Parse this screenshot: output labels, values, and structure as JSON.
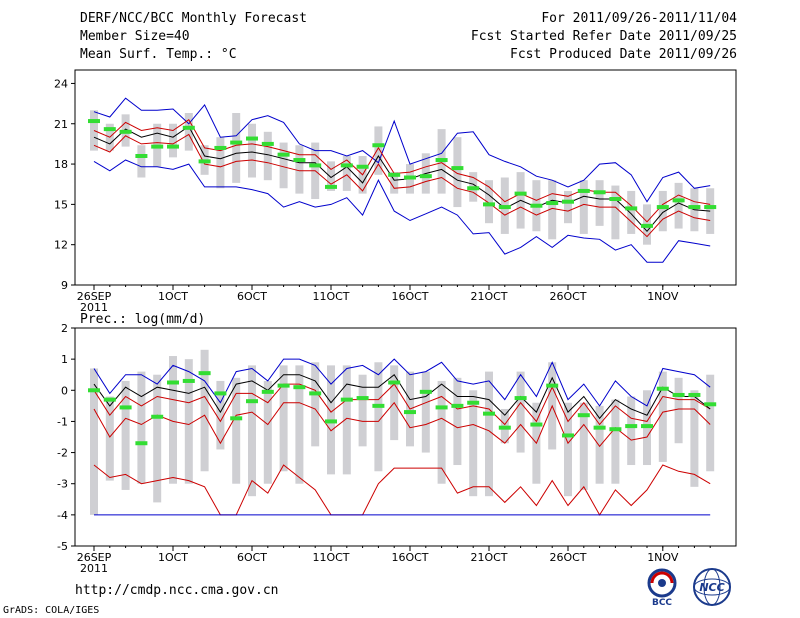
{
  "header": {
    "title": "DERF/NCC/BCC Monthly Forecast",
    "member_size": "Member Size=40",
    "variable_label": "Mean Surf. Temp.: °C",
    "period": "For 2011/09/26-2011/11/04",
    "started": "Fcst Started Refer Date 2011/09/25",
    "produced": "Fcst Produced Date 2011/09/26"
  },
  "footer": {
    "url": "http://cmdp.ncc.cma.gov.cn",
    "credit": "GrADS: COLA/IGES",
    "logo_left_text": "BCC",
    "logo_right_text": "NCC"
  },
  "colors": {
    "frame": "#000000",
    "outer_bound": "#0000cc",
    "inner_bound": "#cc0000",
    "mean": "#000000",
    "bar": "#cfcfd3",
    "marker": "#33dd33"
  },
  "chart_data": [
    {
      "type": "line",
      "title": "Mean Surf. Temp.: °C",
      "x_day_start": 0,
      "x_day_end": 39,
      "x_ticks": [
        {
          "day": 0,
          "label": "26SEP",
          "sub": "2011"
        },
        {
          "day": 5,
          "label": "1OCT"
        },
        {
          "day": 10,
          "label": "6OCT"
        },
        {
          "day": 15,
          "label": "11OCT"
        },
        {
          "day": 20,
          "label": "16OCT"
        },
        {
          "day": 25,
          "label": "21OCT"
        },
        {
          "day": 30,
          "label": "26OCT"
        },
        {
          "day": 36,
          "label": "1NOV"
        }
      ],
      "ylim": [
        9,
        25
      ],
      "yticks": [
        9,
        12,
        15,
        18,
        21,
        24
      ],
      "series": [
        {
          "name": "max",
          "values": [
            21.9,
            21.5,
            22.9,
            22.0,
            22.0,
            22.1,
            21.0,
            22.4,
            20.0,
            20.1,
            21.3,
            21.6,
            21.1,
            19.5,
            19.0,
            19.0,
            18.6,
            19.0,
            18.1,
            21.2,
            18.0,
            18.4,
            18.8,
            20.3,
            20.4,
            18.7,
            18.2,
            17.8,
            17.1,
            16.8,
            16.3,
            16.8,
            18.0,
            18.1,
            17.2,
            15.2,
            17.0,
            17.4,
            16.2,
            16.4
          ]
        },
        {
          "name": "upper",
          "values": [
            20.5,
            20.0,
            21.1,
            20.5,
            20.7,
            20.5,
            21.3,
            19.2,
            19.0,
            19.4,
            19.5,
            19.3,
            19.0,
            18.7,
            18.7,
            17.6,
            18.3,
            17.2,
            19.2,
            17.3,
            17.4,
            17.8,
            18.1,
            17.3,
            17.0,
            16.3,
            15.2,
            15.8,
            15.3,
            15.8,
            15.6,
            16.1,
            15.9,
            15.9,
            14.9,
            13.7,
            15.0,
            15.7,
            15.2,
            15.0
          ]
        },
        {
          "name": "mean",
          "values": [
            20.0,
            19.5,
            20.6,
            20.0,
            20.3,
            20.0,
            20.8,
            18.6,
            18.4,
            18.8,
            18.9,
            18.7,
            18.4,
            18.1,
            18.1,
            17.0,
            17.8,
            16.6,
            18.6,
            16.8,
            16.9,
            17.3,
            17.6,
            16.8,
            16.5,
            15.7,
            14.7,
            15.3,
            14.8,
            15.3,
            15.1,
            15.6,
            15.4,
            15.4,
            14.3,
            13.0,
            14.4,
            15.1,
            14.6,
            14.5
          ]
        },
        {
          "name": "lower",
          "values": [
            19.4,
            18.9,
            20.1,
            19.5,
            19.6,
            19.5,
            20.2,
            18.0,
            17.8,
            18.2,
            18.3,
            18.1,
            17.8,
            17.5,
            17.5,
            16.5,
            17.2,
            16.0,
            18.0,
            16.2,
            16.3,
            16.7,
            17.0,
            16.2,
            15.9,
            15.1,
            14.2,
            14.8,
            14.2,
            14.7,
            14.5,
            15.0,
            14.8,
            14.8,
            13.7,
            12.6,
            13.9,
            14.5,
            14.0,
            13.8
          ]
        },
        {
          "name": "min",
          "values": [
            18.2,
            17.5,
            18.3,
            17.8,
            17.8,
            17.6,
            18.0,
            16.3,
            16.3,
            16.3,
            16.1,
            15.8,
            14.8,
            15.2,
            14.8,
            15.0,
            15.5,
            14.2,
            16.8,
            14.5,
            13.8,
            14.3,
            14.8,
            14.2,
            12.8,
            12.9,
            11.3,
            11.8,
            12.6,
            11.8,
            12.7,
            12.5,
            12.4,
            11.6,
            12.0,
            10.7,
            10.7,
            12.3,
            12.1,
            11.9
          ]
        },
        {
          "name": "obs_marker",
          "values": [
            21.2,
            20.6,
            20.4,
            18.6,
            19.3,
            19.3,
            20.7,
            18.2,
            19.2,
            19.6,
            19.9,
            19.5,
            18.7,
            18.3,
            17.9,
            16.3,
            17.9,
            17.8,
            19.4,
            17.2,
            17.0,
            17.1,
            18.3,
            17.7,
            16.2,
            15.0,
            14.8,
            15.8,
            14.9,
            15.1,
            15.2,
            16.0,
            15.9,
            15.4,
            14.7,
            13.4,
            14.8,
            15.3,
            14.8,
            14.8
          ]
        }
      ],
      "bars": {
        "name": "box_range",
        "low": [
          19.0,
          19.0,
          19.3,
          17.0,
          17.8,
          18.5,
          19.0,
          17.2,
          16.2,
          16.6,
          17.0,
          16.8,
          16.2,
          15.8,
          15.4,
          16.0,
          16.0,
          15.8,
          17.2,
          15.8,
          15.8,
          15.8,
          15.8,
          14.8,
          15.2,
          13.6,
          12.8,
          13.2,
          13.0,
          12.4,
          13.6,
          12.8,
          13.4,
          12.4,
          12.8,
          12.0,
          13.0,
          13.2,
          13.0,
          12.8
        ],
        "high": [
          22.0,
          21.0,
          21.7,
          19.4,
          21.0,
          21.0,
          21.8,
          19.4,
          20.0,
          21.8,
          21.0,
          20.4,
          19.6,
          19.4,
          19.6,
          18.2,
          18.6,
          18.6,
          20.8,
          17.4,
          18.0,
          18.8,
          20.6,
          20.0,
          17.4,
          16.8,
          17.0,
          17.4,
          16.8,
          16.8,
          16.0,
          16.8,
          16.8,
          16.4,
          16.0,
          15.0,
          16.0,
          16.6,
          16.2,
          16.2
        ]
      }
    },
    {
      "type": "line",
      "title": "Prec.: log(mm/d)",
      "x_day_start": 0,
      "x_day_end": 39,
      "x_ticks": [
        {
          "day": 0,
          "label": "26SEP",
          "sub": "2011"
        },
        {
          "day": 5,
          "label": "1OCT"
        },
        {
          "day": 10,
          "label": "6OCT"
        },
        {
          "day": 15,
          "label": "11OCT"
        },
        {
          "day": 20,
          "label": "16OCT"
        },
        {
          "day": 25,
          "label": "21OCT"
        },
        {
          "day": 30,
          "label": "26OCT"
        },
        {
          "day": 36,
          "label": "1NOV"
        }
      ],
      "ylim": [
        -5,
        2
      ],
      "yticks": [
        -5,
        -4,
        -3,
        -2,
        -1,
        0,
        1,
        2
      ],
      "series": [
        {
          "name": "max",
          "values": [
            0.7,
            -0.1,
            0.5,
            0.5,
            0.2,
            0.8,
            0.6,
            0.3,
            -0.4,
            0.6,
            0.7,
            0.3,
            1.0,
            1.0,
            0.8,
            0.2,
            0.7,
            0.8,
            0.5,
            1.0,
            0.5,
            0.6,
            0.9,
            0.3,
            0.2,
            0.3,
            -0.3,
            0.5,
            -0.2,
            0.9,
            -0.3,
            0.2,
            -0.5,
            0.3,
            -0.2,
            -0.5,
            0.7,
            0.6,
            0.5,
            0.1
          ]
        },
        {
          "name": "upper",
          "values": [
            0.0,
            -0.8,
            -0.2,
            -0.5,
            -0.2,
            -0.3,
            -0.4,
            -0.2,
            -1.0,
            -0.1,
            -0.1,
            -0.4,
            0.2,
            0.2,
            0.0,
            -0.7,
            -0.3,
            -0.3,
            -0.3,
            0.2,
            -0.6,
            -0.4,
            -0.2,
            -0.6,
            -0.5,
            -0.6,
            -1.1,
            -0.4,
            -1.0,
            0.1,
            -1.0,
            -0.4,
            -1.1,
            -0.5,
            -0.9,
            -1.0,
            -0.2,
            -0.3,
            -0.3,
            -0.6
          ]
        },
        {
          "name": "lower",
          "values": [
            -0.6,
            -1.5,
            -0.9,
            -1.1,
            -0.8,
            -1.0,
            -1.1,
            -0.8,
            -1.7,
            -0.8,
            -0.7,
            -1.1,
            -0.4,
            -0.4,
            -0.6,
            -1.3,
            -0.9,
            -1.0,
            -1.0,
            -0.4,
            -1.2,
            -1.1,
            -0.9,
            -1.2,
            -1.1,
            -1.3,
            -1.7,
            -1.1,
            -1.7,
            -0.5,
            -1.7,
            -1.1,
            -1.8,
            -1.2,
            -1.6,
            -1.5,
            -0.7,
            -0.6,
            -0.6,
            -1.1
          ]
        },
        {
          "name": "minimum",
          "values": [
            -2.4,
            -2.8,
            -2.7,
            -3.0,
            -2.9,
            -2.8,
            -2.9,
            -3.1,
            -4.0,
            -4.0,
            -2.9,
            -3.3,
            -2.4,
            -2.8,
            -3.2,
            -4.0,
            -4.0,
            -4.0,
            -3.0,
            -2.5,
            -2.5,
            -2.5,
            -2.5,
            -3.3,
            -3.1,
            -3.1,
            -3.6,
            -3.1,
            -3.7,
            -2.9,
            -3.7,
            -3.1,
            -4.0,
            -3.2,
            -3.7,
            -3.2,
            -2.4,
            -2.6,
            -2.7,
            -3.0
          ]
        },
        {
          "name": "floor",
          "values": [
            -4.0,
            -4.0,
            -4.0,
            -4.0,
            -4.0,
            -4.0,
            -4.0,
            -4.0,
            -4.0,
            -4.0,
            -4.0,
            -4.0,
            -4.0,
            -4.0,
            -4.0,
            -4.0,
            -4.0,
            -4.0,
            -4.0,
            -4.0,
            -4.0,
            -4.0,
            -4.0,
            -4.0,
            -4.0,
            -4.0,
            -4.0,
            -4.0,
            -4.0,
            -4.0,
            -4.0,
            -4.0,
            -4.0,
            -4.0,
            -4.0,
            -4.0,
            -4.0,
            -4.0,
            -4.0,
            -4.0
          ]
        },
        {
          "name": "mean",
          "values": [
            0.2,
            -0.5,
            0.1,
            -0.2,
            0.1,
            0.0,
            -0.1,
            0.1,
            -0.7,
            0.2,
            0.3,
            0.0,
            0.5,
            0.5,
            0.3,
            -0.4,
            0.2,
            0.1,
            0.1,
            0.5,
            -0.3,
            -0.2,
            0.2,
            -0.2,
            -0.2,
            -0.3,
            -0.8,
            -0.2,
            -0.7,
            0.4,
            -0.7,
            -0.2,
            -0.9,
            -0.3,
            -0.6,
            -0.8,
            0.1,
            -0.2,
            -0.2,
            -0.6
          ]
        },
        {
          "name": "obs_marker",
          "values": [
            0.0,
            -0.3,
            -0.55,
            -1.7,
            -0.85,
            0.25,
            0.3,
            0.55,
            -0.1,
            -0.9,
            -0.35,
            -0.05,
            0.15,
            0.1,
            -0.1,
            -1.0,
            -0.3,
            -0.25,
            -0.5,
            0.25,
            -0.7,
            -0.05,
            -0.55,
            -0.5,
            -0.4,
            -0.75,
            -1.2,
            -0.25,
            -1.1,
            0.15,
            -1.45,
            -0.8,
            -1.2,
            -1.25,
            -1.15,
            -1.15,
            0.05,
            -0.15,
            -0.15,
            -0.45
          ]
        }
      ],
      "bars": {
        "name": "box_range",
        "low": [
          -4.0,
          -2.9,
          -3.2,
          -3.0,
          -3.6,
          -3.0,
          -3.0,
          -2.6,
          -1.9,
          -3.0,
          -3.4,
          -3.0,
          -2.6,
          -3.0,
          -1.8,
          -2.7,
          -2.7,
          -1.8,
          -2.6,
          -1.6,
          -1.8,
          -2.0,
          -3.0,
          -2.4,
          -3.4,
          -3.4,
          -1.7,
          -2.0,
          -3.0,
          -1.9,
          -3.4,
          -3.2,
          -3.0,
          -3.0,
          -2.4,
          -2.4,
          -2.3,
          -1.7,
          -3.1,
          -2.6
        ],
        "high": [
          0.7,
          -0.2,
          0.3,
          0.6,
          0.5,
          1.1,
          1.0,
          1.3,
          0.3,
          0.4,
          0.8,
          0.3,
          0.8,
          0.8,
          0.9,
          0.8,
          0.8,
          0.5,
          0.9,
          0.8,
          0.6,
          0.6,
          0.3,
          0.4,
          0.0,
          0.6,
          -0.6,
          0.6,
          -0.4,
          0.9,
          -0.4,
          -0.4,
          -0.5,
          -0.3,
          -0.2,
          0.0,
          0.6,
          0.4,
          0.0,
          0.5
        ]
      }
    }
  ]
}
